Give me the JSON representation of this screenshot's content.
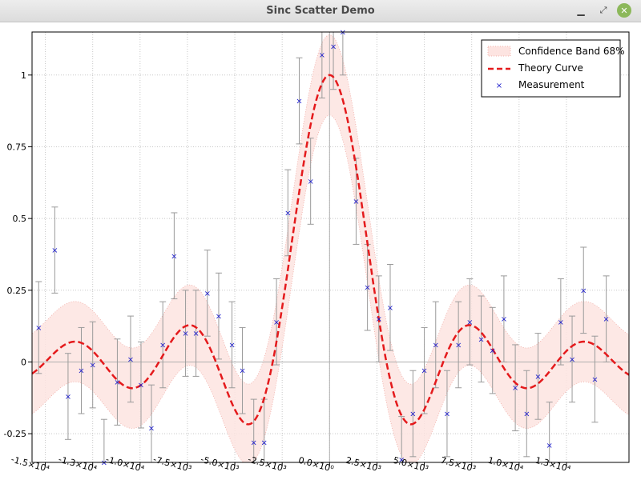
{
  "window": {
    "title": "Sinc Scatter Demo",
    "minimize_icon": "minimize-icon",
    "maximize_icon": "maximize-icon",
    "close_icon": "close-icon",
    "close_color": "#8cb85a"
  },
  "chart_data": {
    "type": "scatter",
    "title": "",
    "xlabel": "",
    "ylabel": "",
    "xlim": [
      -15700,
      15800
    ],
    "ylim": [
      -0.35,
      1.15
    ],
    "grid": true,
    "legend_position": "top-right",
    "x_ticks": [
      {
        "value": -15000,
        "label": "-1.5×10⁴"
      },
      {
        "value": -12500,
        "label": "-1.3×10⁴"
      },
      {
        "value": -10000,
        "label": "-1.0×10⁴"
      },
      {
        "value": -7500,
        "label": "-7.5×10³"
      },
      {
        "value": -5000,
        "label": "-5.0×10³"
      },
      {
        "value": -2500,
        "label": "-2.5×10³"
      },
      {
        "value": 0,
        "label": "0.0×10⁰"
      },
      {
        "value": 2500,
        "label": "2.5×10³"
      },
      {
        "value": 5000,
        "label": "5.0×10³"
      },
      {
        "value": 7500,
        "label": "7.5×10³"
      },
      {
        "value": 10000,
        "label": "1.0×10⁴"
      },
      {
        "value": 12500,
        "label": "1.3×10⁴"
      }
    ],
    "y_ticks": [
      {
        "value": -0.25,
        "label": "-0.25"
      },
      {
        "value": 0,
        "label": "0"
      },
      {
        "value": 0.25,
        "label": "0.25"
      },
      {
        "value": 0.5,
        "label": "0.5"
      },
      {
        "value": 0.75,
        "label": "0.75"
      },
      {
        "value": 1,
        "label": "1"
      }
    ],
    "legend": [
      {
        "name": "Confidence Band 68%",
        "color": "#fbdcd8"
      },
      {
        "name": "Theory Curve",
        "color": "#e41a1c"
      },
      {
        "name": "Measurement",
        "color": "#1a1acc"
      }
    ],
    "band_halfwidth": 0.14,
    "theory_curve": {
      "amplitude": 1.0,
      "zero_spacing": 3000
    },
    "series": [
      {
        "name": "Measurement",
        "points": [
          {
            "x": -15350,
            "y": 0.12,
            "err": 0.16
          },
          {
            "x": -14500,
            "y": 0.39,
            "err": 0.15
          },
          {
            "x": -13800,
            "y": -0.12,
            "err": 0.15
          },
          {
            "x": -13100,
            "y": -0.03,
            "err": 0.15
          },
          {
            "x": -12500,
            "y": -0.01,
            "err": 0.15
          },
          {
            "x": -11900,
            "y": -0.35,
            "err": 0.15
          },
          {
            "x": -11200,
            "y": -0.07,
            "err": 0.15
          },
          {
            "x": -10500,
            "y": 0.01,
            "err": 0.15
          },
          {
            "x": -9950,
            "y": -0.08,
            "err": 0.15
          },
          {
            "x": -9400,
            "y": -0.23,
            "err": 0.15
          },
          {
            "x": -8800,
            "y": 0.06,
            "err": 0.15
          },
          {
            "x": -8200,
            "y": 0.37,
            "err": 0.15
          },
          {
            "x": -7600,
            "y": 0.1,
            "err": 0.15
          },
          {
            "x": -7050,
            "y": 0.1,
            "err": 0.15
          },
          {
            "x": -6450,
            "y": 0.24,
            "err": 0.15
          },
          {
            "x": -5850,
            "y": 0.16,
            "err": 0.15
          },
          {
            "x": -5150,
            "y": 0.06,
            "err": 0.15
          },
          {
            "x": -4600,
            "y": -0.03,
            "err": 0.15
          },
          {
            "x": -4000,
            "y": -0.28,
            "err": 0.15
          },
          {
            "x": -3450,
            "y": -0.28,
            "err": 0.15
          },
          {
            "x": -2800,
            "y": 0.14,
            "err": 0.15
          },
          {
            "x": -2200,
            "y": 0.52,
            "err": 0.15
          },
          {
            "x": -1600,
            "y": 0.91,
            "err": 0.15
          },
          {
            "x": -1000,
            "y": 0.63,
            "err": 0.15
          },
          {
            "x": -400,
            "y": 1.07,
            "err": 0.15
          },
          {
            "x": 200,
            "y": 1.1,
            "err": 0.15
          },
          {
            "x": 700,
            "y": 1.15,
            "err": 0.15
          },
          {
            "x": 1400,
            "y": 0.56,
            "err": 0.15
          },
          {
            "x": 2000,
            "y": 0.26,
            "err": 0.15
          },
          {
            "x": 2600,
            "y": 0.15,
            "err": 0.15
          },
          {
            "x": 3200,
            "y": 0.19,
            "err": 0.15
          },
          {
            "x": 3800,
            "y": -0.34,
            "err": 0.15
          },
          {
            "x": 4400,
            "y": -0.18,
            "err": 0.15
          },
          {
            "x": 5000,
            "y": -0.03,
            "err": 0.15
          },
          {
            "x": 5600,
            "y": 0.06,
            "err": 0.15
          },
          {
            "x": 6200,
            "y": -0.18,
            "err": 0.15
          },
          {
            "x": 6800,
            "y": 0.06,
            "err": 0.15
          },
          {
            "x": 7400,
            "y": 0.14,
            "err": 0.15
          },
          {
            "x": 8000,
            "y": 0.08,
            "err": 0.15
          },
          {
            "x": 8600,
            "y": 0.04,
            "err": 0.15
          },
          {
            "x": 9200,
            "y": 0.15,
            "err": 0.15
          },
          {
            "x": 9800,
            "y": -0.09,
            "err": 0.15
          },
          {
            "x": 10400,
            "y": -0.18,
            "err": 0.15
          },
          {
            "x": 11000,
            "y": -0.05,
            "err": 0.15
          },
          {
            "x": 11600,
            "y": -0.29,
            "err": 0.15
          },
          {
            "x": 12200,
            "y": 0.14,
            "err": 0.15
          },
          {
            "x": 12800,
            "y": 0.01,
            "err": 0.15
          },
          {
            "x": 13400,
            "y": 0.25,
            "err": 0.15
          },
          {
            "x": 14000,
            "y": -0.06,
            "err": 0.15
          },
          {
            "x": 14600,
            "y": 0.15,
            "err": 0.15
          }
        ]
      }
    ]
  }
}
